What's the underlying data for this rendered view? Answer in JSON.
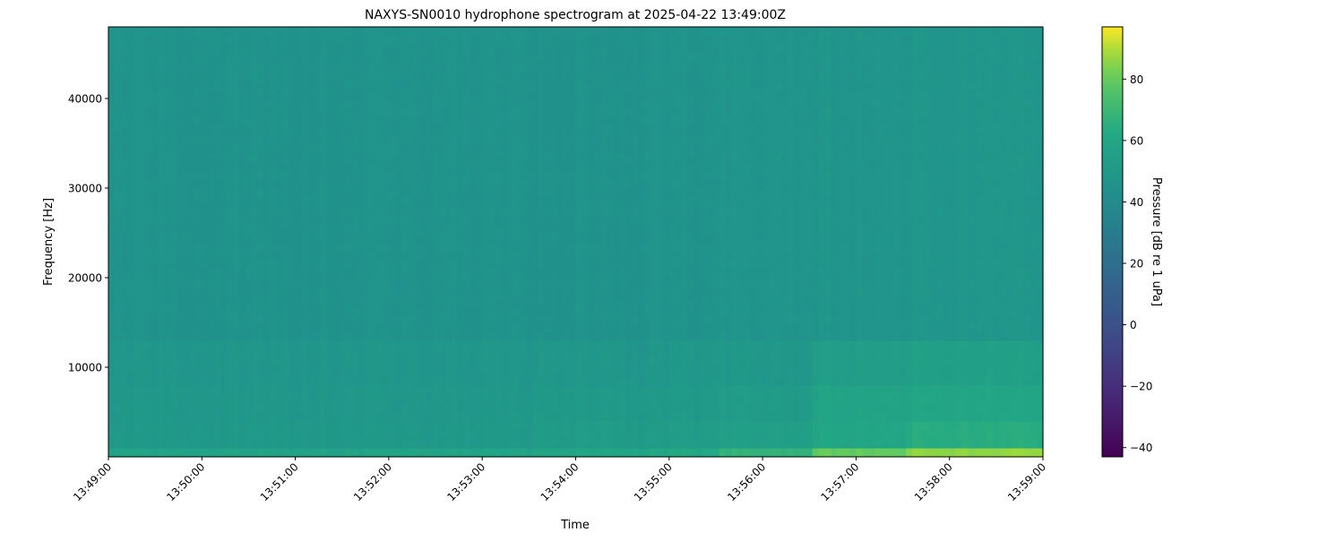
{
  "chart_data": {
    "type": "heatmap",
    "title": "NAXYS-SN0010 hydrophone spectrogram at 2025-04-22 13:49:00Z",
    "xlabel": "Time",
    "ylabel": "Frequency [Hz]",
    "colorbar_label": "Pressure [dB re 1 uPa]",
    "colormap": "viridis",
    "x_tick_labels": [
      "13:49:00",
      "13:50:00",
      "13:51:00",
      "13:52:00",
      "13:53:00",
      "13:54:00",
      "13:55:00",
      "13:56:00",
      "13:57:00",
      "13:58:00",
      "13:59:00"
    ],
    "x_range_seconds_from_13_49_00": [
      0,
      600
    ],
    "y_ticks": [
      10000,
      20000,
      30000,
      40000
    ],
    "y_range": [
      0,
      48000
    ],
    "colorbar_ticks": [
      -40,
      -20,
      0,
      20,
      40,
      60,
      80
    ],
    "color_range": [
      -43,
      97
    ],
    "time_bin_seconds": 30,
    "frequency_bands_hz": [
      [
        0,
        1000
      ],
      [
        1000,
        4000
      ],
      [
        4000,
        8000
      ],
      [
        8000,
        13000
      ],
      [
        13000,
        48000
      ]
    ],
    "values_db": [
      [
        58,
        50,
        49,
        48,
        46
      ],
      [
        58,
        50,
        49,
        48,
        46
      ],
      [
        58,
        50,
        49,
        48,
        46
      ],
      [
        58,
        50,
        49,
        48,
        46
      ],
      [
        58,
        50,
        49,
        48,
        46
      ],
      [
        58,
        50,
        49,
        48,
        46
      ],
      [
        58,
        50,
        49,
        48,
        46
      ],
      [
        58,
        50,
        49,
        48,
        46
      ],
      [
        58,
        50,
        49,
        48,
        46
      ],
      [
        60,
        53,
        51,
        49,
        46
      ],
      [
        60,
        53,
        51,
        49,
        46
      ],
      [
        60,
        52,
        50,
        48,
        46
      ],
      [
        62,
        53,
        51,
        49,
        46
      ],
      [
        67,
        55,
        53,
        50,
        47
      ],
      [
        67,
        55,
        52,
        49,
        47
      ],
      [
        80,
        60,
        58,
        54,
        47
      ],
      [
        80,
        60,
        58,
        54,
        47
      ],
      [
        86,
        64,
        60,
        56,
        48
      ],
      [
        86,
        64,
        60,
        56,
        48
      ],
      [
        87,
        64,
        60,
        56,
        48
      ]
    ]
  }
}
